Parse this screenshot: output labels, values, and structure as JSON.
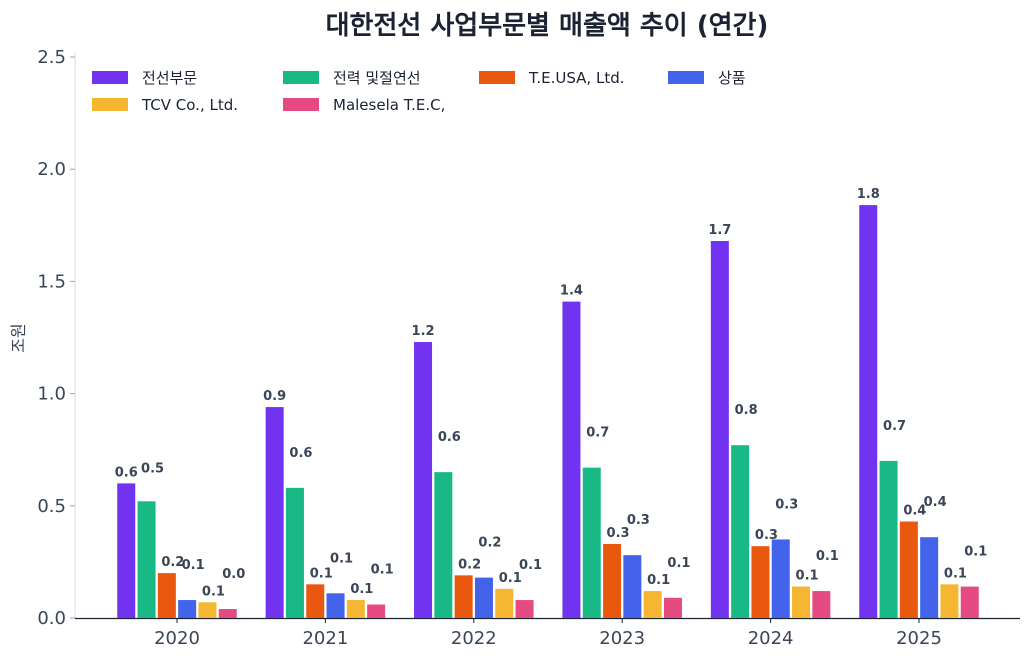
{
  "chart_data": {
    "type": "bar",
    "title": "대한전선 사업부문별 매출액 추이 (연간)",
    "xlabel": "",
    "ylabel": "조원",
    "ylim": [
      0,
      2.5
    ],
    "yticks": [
      "0.0",
      "0.5",
      "1.0",
      "1.5",
      "2.0",
      "2.5"
    ],
    "grid": false,
    "legend_position": "top-left",
    "categories": [
      "2020",
      "2021",
      "2022",
      "2023",
      "2024",
      "2025"
    ],
    "series": [
      {
        "name": "전선부문",
        "color": "#7133f0",
        "values": [
          0.6,
          0.94,
          1.23,
          1.41,
          1.68,
          1.84
        ],
        "labels": [
          "0.6",
          "0.9",
          "1.2",
          "1.4",
          "1.7",
          "1.8"
        ]
      },
      {
        "name": "전력 및절연선",
        "color": "#18b985",
        "values": [
          0.52,
          0.58,
          0.65,
          0.67,
          0.77,
          0.7
        ],
        "labels": [
          "0.5",
          "0.6",
          "0.6",
          "0.7",
          "0.8",
          "0.7"
        ]
      },
      {
        "name": "T.E.USA, Ltd.",
        "color": "#e8580f",
        "values": [
          0.2,
          0.15,
          0.19,
          0.33,
          0.32,
          0.43
        ],
        "labels": [
          "0.2",
          "0.1",
          "0.2",
          "0.3",
          "0.3",
          "0.4"
        ]
      },
      {
        "name": "상품",
        "color": "#4463eb",
        "values": [
          0.08,
          0.11,
          0.18,
          0.28,
          0.35,
          0.36
        ],
        "labels": [
          "0.1",
          "0.1",
          "0.2",
          "0.3",
          "0.3",
          "0.4"
        ]
      },
      {
        "name": "TCV Co., Ltd.",
        "color": "#f5b731",
        "values": [
          0.07,
          0.08,
          0.13,
          0.12,
          0.14,
          0.15
        ],
        "labels": [
          "0.1",
          "0.1",
          "0.1",
          "0.1",
          "0.1",
          "0.1"
        ]
      },
      {
        "name": "Malesela T.E.C,",
        "color": "#e54a80",
        "values": [
          0.04,
          0.06,
          0.08,
          0.09,
          0.12,
          0.14
        ],
        "labels": [
          "0.0",
          "0.1",
          "0.1",
          "0.1",
          "0.1",
          "0.1"
        ]
      }
    ]
  }
}
